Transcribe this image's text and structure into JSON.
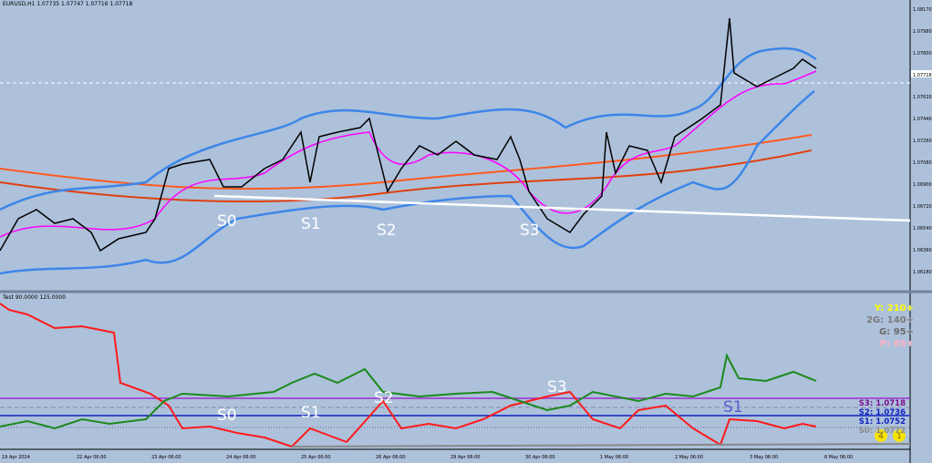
{
  "header": {
    "symbol_line": "EURUSD,H1  1.07735 1.07747 1.07716 1.07718"
  },
  "indicator_line": "Test 90.0000 125.0000",
  "swing_labels_main": [
    "S0",
    "S1",
    "S2",
    "S3"
  ],
  "swing_labels_lower": [
    "S0",
    "S1",
    "S2",
    "S3",
    "S1"
  ],
  "legend": [
    "Y: 210+",
    "2G: 140+",
    "G: 95+",
    "P: 65+"
  ],
  "levels": [
    "S3: 1.0718",
    "S2: 1.0736",
    "S1: 1.0752",
    "S0: 1.0772"
  ],
  "badges": [
    "4",
    "1"
  ],
  "price_axis": [
    "1.08170",
    "1.07980",
    "1.07800",
    "1.07718",
    "1.07620",
    "1.07440",
    "1.07260",
    "1.07080",
    "1.06900",
    "1.06720",
    "1.06540",
    "1.06360",
    "1.06180"
  ],
  "time_axis": [
    "19 Apr 2024",
    "22 Apr 06:00",
    "23 Apr 06:00",
    "24 Apr 06:00",
    "25 Apr 06:00",
    "26 Apr 06:00",
    "29 Apr 06:00",
    "30 Apr 06:00",
    "1 May 06:00",
    "2 May 06:00",
    "3 May 06:00",
    "6 May 06:00"
  ]
}
